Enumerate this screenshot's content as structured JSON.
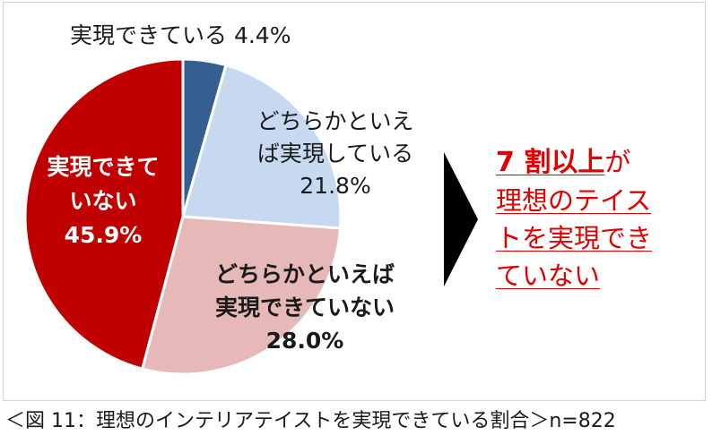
{
  "chart_data": {
    "type": "pie",
    "title": "",
    "slices": [
      {
        "label": "実現できている",
        "value": 4.4,
        "value_label": "4.4%",
        "color": "#365F91"
      },
      {
        "label": "どちらかといえば実現している",
        "value": 21.8,
        "value_label": "21.8%",
        "color": "#C6D9F1"
      },
      {
        "label": "どちらかといえば実現できていない",
        "value": 28.0,
        "value_label": "28.0%",
        "color": "#E6B9B8"
      },
      {
        "label": "実現できていない",
        "value": 45.9,
        "value_label": "45.9%",
        "color": "#C00000"
      }
    ],
    "start_angle": "12 o'clock, clockwise",
    "legend": "none"
  },
  "labels": {
    "top": "実現できている 4.4%",
    "yes_line1": "どちらかといえ",
    "yes_line2": "ば実現している",
    "yes_pct": "21.8%",
    "no_line1": "どちらかといえば",
    "no_line2": "実現できていない",
    "no_pct": "28.0%",
    "not_line1": "実現できて",
    "not_line2": "いない",
    "not_pct": "45.9%"
  },
  "callout": {
    "highlight": "7 割以上",
    "suffix": "が",
    "line2": "理想のテイス",
    "line3": "トを実現でき",
    "line4": "ていない",
    "color": "#E00000"
  },
  "caption": "＜図 11：理想のインテリアテイストを実現できている割合＞n=822"
}
